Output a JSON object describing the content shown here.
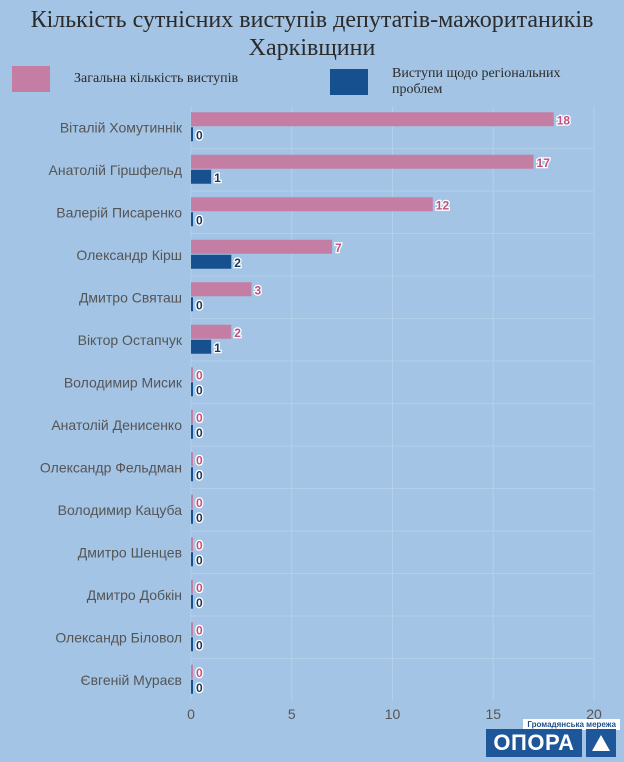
{
  "title": "Кількість сутнісних виступів депутатів-мажоритаників Харківщини",
  "legend": {
    "total_label": "Загальна кількість виступів",
    "regional_label": "Виступи щодо регіональних проблем"
  },
  "colors": {
    "total": "#c47ea3",
    "regional": "#16508f",
    "background": "#a3c4e4",
    "grid": "#b3cfe9",
    "total_text": "#c0507f",
    "regional_text": "#17365d"
  },
  "logo": {
    "subtitle": "Громадянська мережа",
    "name": "ОПОРА"
  },
  "chart_data": {
    "type": "bar",
    "orientation": "horizontal",
    "title": "Кількість сутнісних виступів депутатів-мажоритаників Харківщини",
    "categories": [
      "Віталій Хомутиннік",
      "Анатолій Гіршфельд",
      "Валерій Писаренко",
      "Олександр Кірш",
      "Дмитро Святаш",
      "Віктор Остапчук",
      "Володимир Мисик",
      "Анатолій Денисенко",
      "Олександр Фельдман",
      "Володимир Кацуба",
      "Дмитро Шенцев",
      "Дмитро Добкін",
      "Олександр Біловол",
      "Євгеній Мураєв"
    ],
    "series": [
      {
        "name": "Загальна кількість виступів",
        "values": [
          18,
          17,
          12,
          7,
          3,
          2,
          0,
          0,
          0,
          0,
          0,
          0,
          0,
          0
        ]
      },
      {
        "name": "Виступи щодо регіональних проблем",
        "values": [
          0,
          1,
          0,
          2,
          0,
          1,
          0,
          0,
          0,
          0,
          0,
          0,
          0,
          0
        ]
      }
    ],
    "xlim": [
      0,
      20
    ],
    "xticks": [
      "0",
      "5",
      "10",
      "15",
      "20"
    ],
    "legend_position": "top",
    "grid": true
  }
}
